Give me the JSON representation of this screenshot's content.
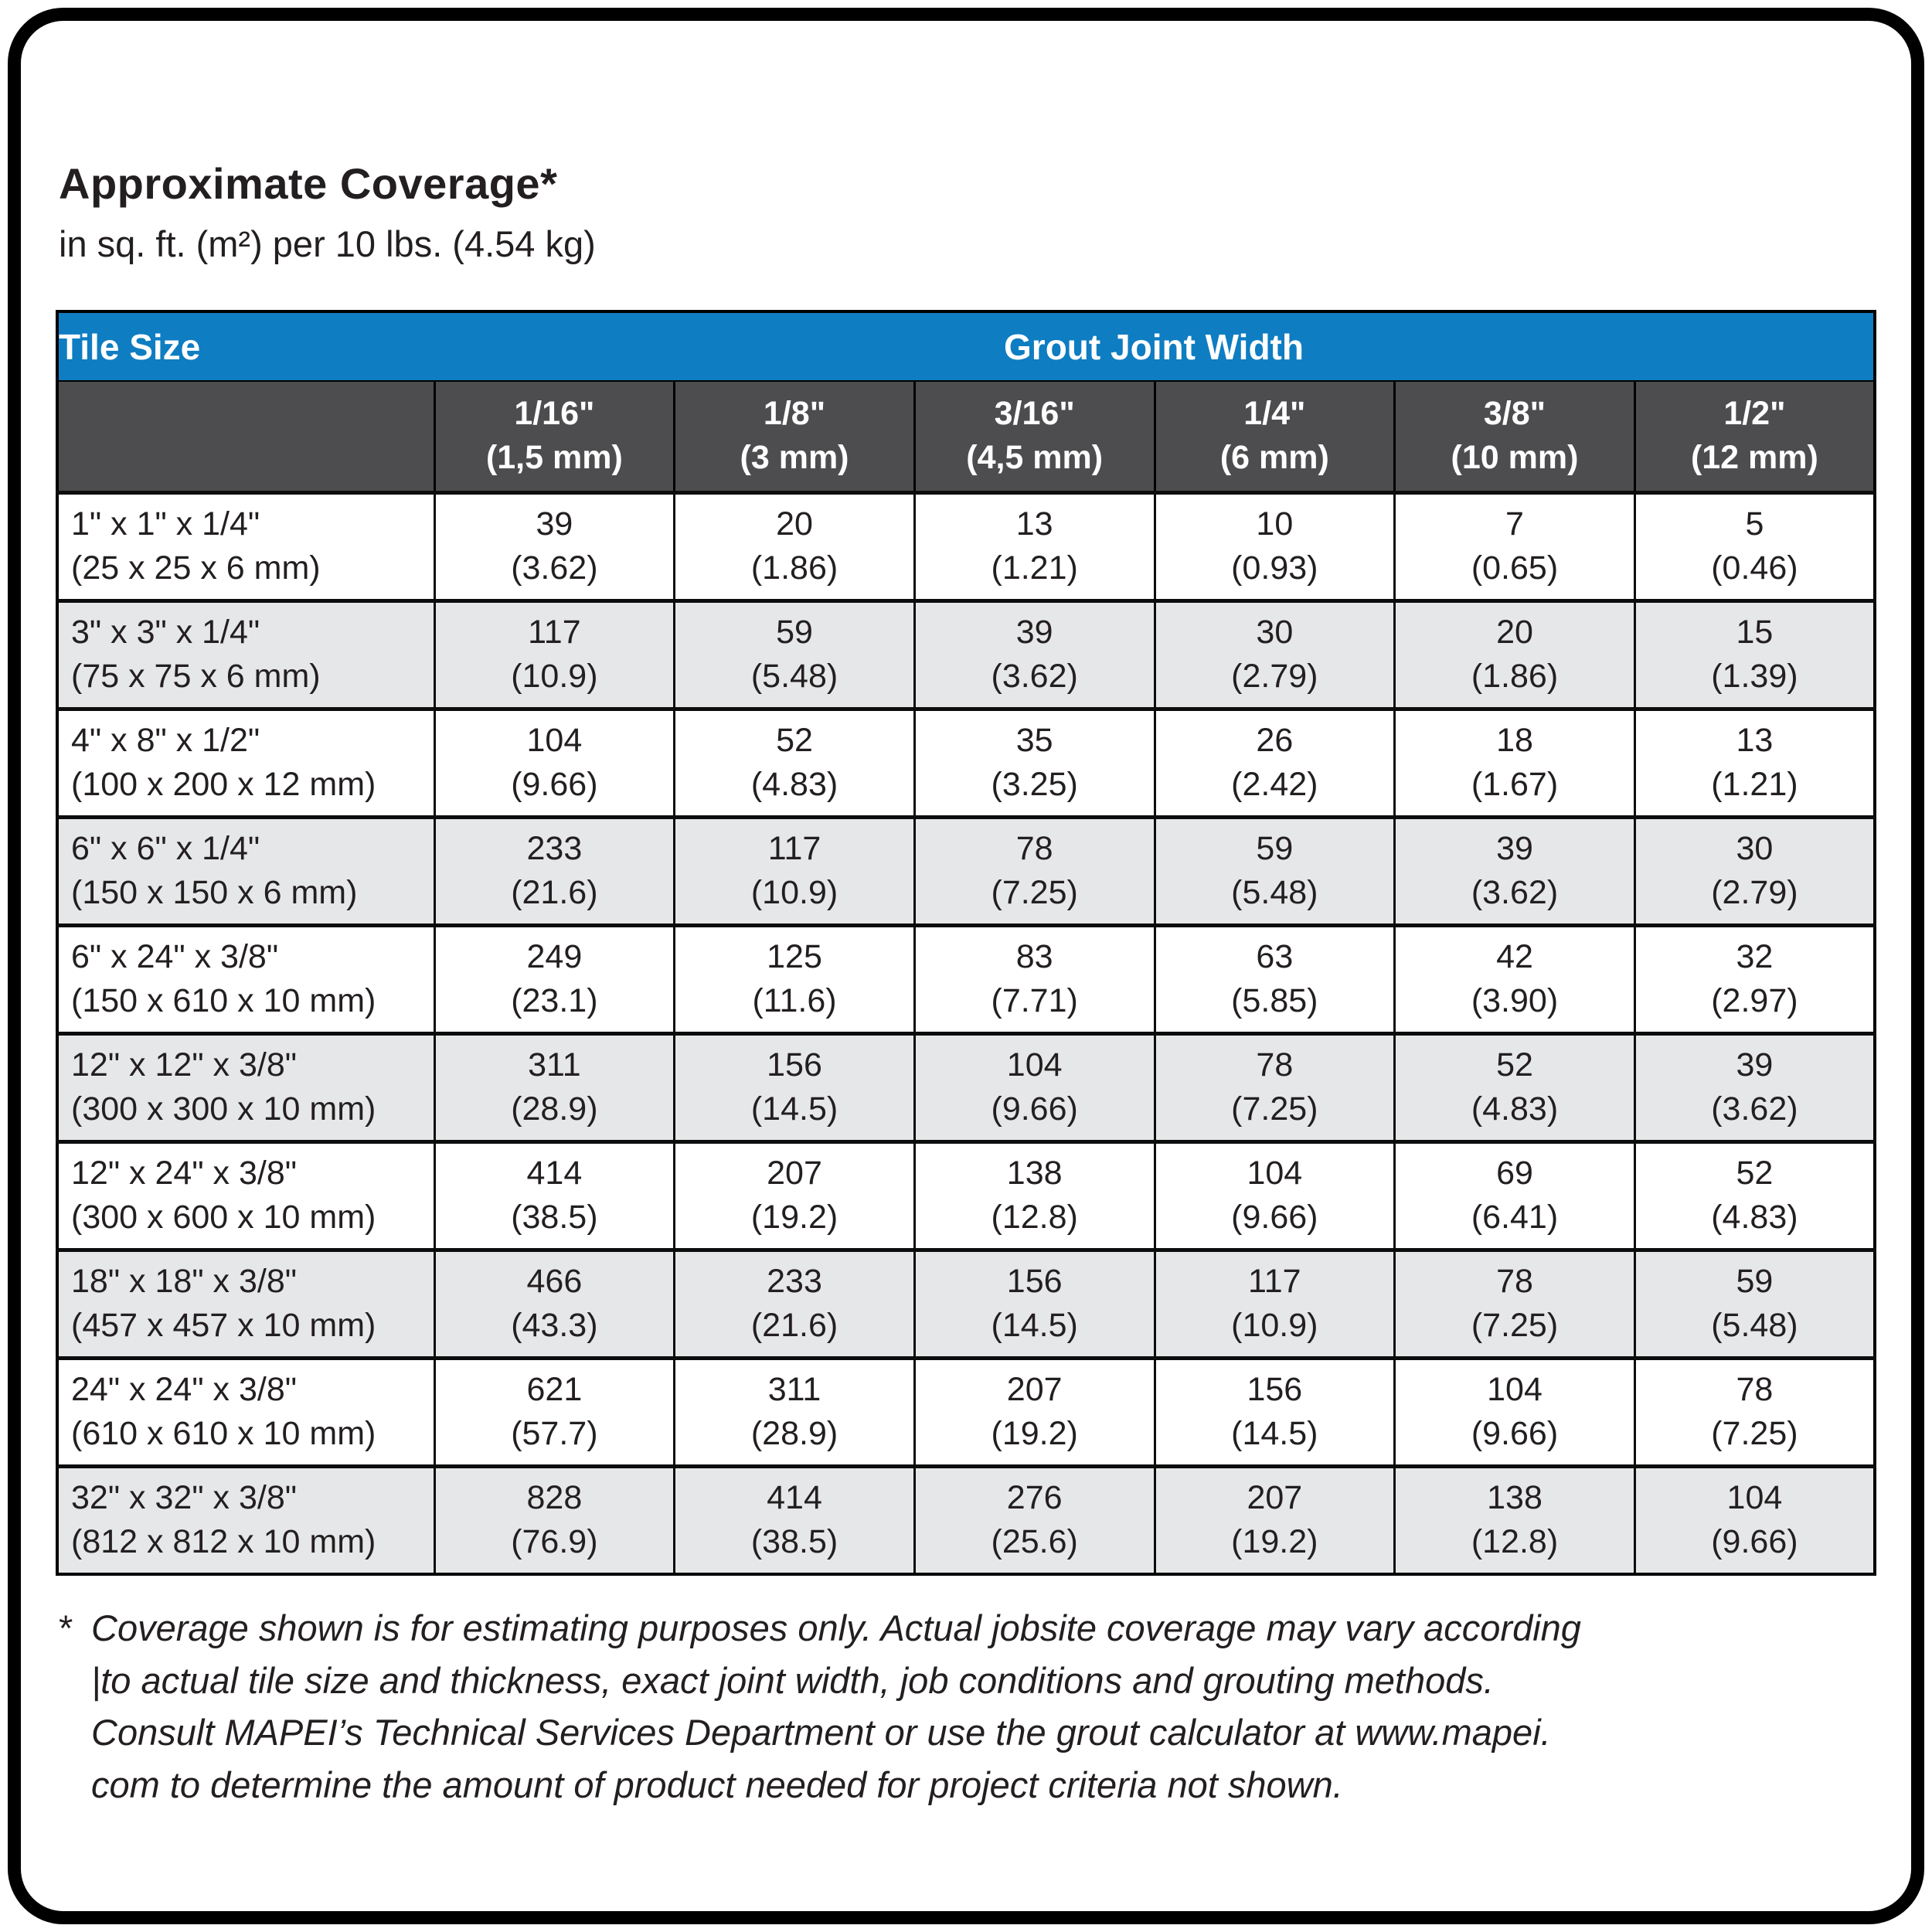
{
  "page": {
    "title": "Approximate Coverage*",
    "subtitle": "in sq. ft. (m²) per 10 lbs. (4.54 kg)"
  },
  "colors": {
    "header_blue": "#0e7dc2",
    "subheader_gray": "#4d4d4f",
    "row_alt_gray": "#e6e7e8",
    "text_black": "#231f20"
  },
  "table": {
    "tile_size_label": "Tile Size",
    "grout_joint_width_label": "Grout Joint Width",
    "columns": [
      {
        "inches": "1/16\"",
        "mm": "(1,5 mm)"
      },
      {
        "inches": "1/8\"",
        "mm": "(3 mm)"
      },
      {
        "inches": "3/16\"",
        "mm": "(4,5 mm)"
      },
      {
        "inches": "1/4\"",
        "mm": "(6 mm)"
      },
      {
        "inches": "3/8\"",
        "mm": "(10 mm)"
      },
      {
        "inches": "1/2\"",
        "mm": "(12 mm)"
      }
    ],
    "rows": [
      {
        "size_inches": "1\" x 1\" x 1/4\"",
        "size_mm": "(25 x 25 x 6 mm)",
        "values": [
          {
            "sqft": "39",
            "m2": "(3.62)"
          },
          {
            "sqft": "20",
            "m2": "(1.86)"
          },
          {
            "sqft": "13",
            "m2": "(1.21)"
          },
          {
            "sqft": "10",
            "m2": "(0.93)"
          },
          {
            "sqft": "7",
            "m2": "(0.65)"
          },
          {
            "sqft": "5",
            "m2": "(0.46)"
          }
        ]
      },
      {
        "size_inches": "3\" x 3\" x 1/4\"",
        "size_mm": "(75 x 75 x 6 mm)",
        "values": [
          {
            "sqft": "117",
            "m2": "(10.9)"
          },
          {
            "sqft": "59",
            "m2": "(5.48)"
          },
          {
            "sqft": "39",
            "m2": "(3.62)"
          },
          {
            "sqft": "30",
            "m2": "(2.79)"
          },
          {
            "sqft": "20",
            "m2": "(1.86)"
          },
          {
            "sqft": "15",
            "m2": "(1.39)"
          }
        ]
      },
      {
        "size_inches": "4\" x 8\" x 1/2\"",
        "size_mm": "(100 x 200 x 12 mm)",
        "values": [
          {
            "sqft": "104",
            "m2": "(9.66)"
          },
          {
            "sqft": "52",
            "m2": "(4.83)"
          },
          {
            "sqft": "35",
            "m2": "(3.25)"
          },
          {
            "sqft": "26",
            "m2": "(2.42)"
          },
          {
            "sqft": "18",
            "m2": "(1.67)"
          },
          {
            "sqft": "13",
            "m2": "(1.21)"
          }
        ]
      },
      {
        "size_inches": "6\" x 6\" x 1/4\"",
        "size_mm": "(150 x 150 x 6 mm)",
        "values": [
          {
            "sqft": "233",
            "m2": "(21.6)"
          },
          {
            "sqft": "117",
            "m2": "(10.9)"
          },
          {
            "sqft": "78",
            "m2": "(7.25)"
          },
          {
            "sqft": "59",
            "m2": "(5.48)"
          },
          {
            "sqft": "39",
            "m2": "(3.62)"
          },
          {
            "sqft": "30",
            "m2": "(2.79)"
          }
        ]
      },
      {
        "size_inches": "6\" x 24\" x 3/8\"",
        "size_mm": "(150 x 610 x 10 mm)",
        "values": [
          {
            "sqft": "249",
            "m2": "(23.1)"
          },
          {
            "sqft": "125",
            "m2": "(11.6)"
          },
          {
            "sqft": "83",
            "m2": "(7.71)"
          },
          {
            "sqft": "63",
            "m2": "(5.85)"
          },
          {
            "sqft": "42",
            "m2": "(3.90)"
          },
          {
            "sqft": "32",
            "m2": "(2.97)"
          }
        ]
      },
      {
        "size_inches": "12\" x 12\" x 3/8\"",
        "size_mm": "(300 x 300 x 10 mm)",
        "values": [
          {
            "sqft": "311",
            "m2": "(28.9)"
          },
          {
            "sqft": "156",
            "m2": "(14.5)"
          },
          {
            "sqft": "104",
            "m2": "(9.66)"
          },
          {
            "sqft": "78",
            "m2": "(7.25)"
          },
          {
            "sqft": "52",
            "m2": "(4.83)"
          },
          {
            "sqft": "39",
            "m2": "(3.62)"
          }
        ]
      },
      {
        "size_inches": "12\" x 24\" x 3/8\"",
        "size_mm": "(300 x 600 x 10 mm)",
        "values": [
          {
            "sqft": "414",
            "m2": "(38.5)"
          },
          {
            "sqft": "207",
            "m2": "(19.2)"
          },
          {
            "sqft": "138",
            "m2": "(12.8)"
          },
          {
            "sqft": "104",
            "m2": "(9.66)"
          },
          {
            "sqft": "69",
            "m2": "(6.41)"
          },
          {
            "sqft": "52",
            "m2": "(4.83)"
          }
        ]
      },
      {
        "size_inches": "18\" x 18\" x 3/8\"",
        "size_mm": "(457 x 457 x 10 mm)",
        "values": [
          {
            "sqft": "466",
            "m2": "(43.3)"
          },
          {
            "sqft": "233",
            "m2": "(21.6)"
          },
          {
            "sqft": "156",
            "m2": "(14.5)"
          },
          {
            "sqft": "117",
            "m2": "(10.9)"
          },
          {
            "sqft": "78",
            "m2": "(7.25)"
          },
          {
            "sqft": "59",
            "m2": "(5.48)"
          }
        ]
      },
      {
        "size_inches": "24\" x 24\" x 3/8\"",
        "size_mm": "(610 x 610 x 10 mm)",
        "values": [
          {
            "sqft": "621",
            "m2": "(57.7)"
          },
          {
            "sqft": "311",
            "m2": "(28.9)"
          },
          {
            "sqft": "207",
            "m2": "(19.2)"
          },
          {
            "sqft": "156",
            "m2": "(14.5)"
          },
          {
            "sqft": "104",
            "m2": "(9.66)"
          },
          {
            "sqft": "78",
            "m2": "(7.25)"
          }
        ]
      },
      {
        "size_inches": "32\" x 32\" x 3/8\"",
        "size_mm": "(812 x 812 x 10 mm)",
        "values": [
          {
            "sqft": "828",
            "m2": "(76.9)"
          },
          {
            "sqft": "414",
            "m2": "(38.5)"
          },
          {
            "sqft": "276",
            "m2": "(25.6)"
          },
          {
            "sqft": "207",
            "m2": "(19.2)"
          },
          {
            "sqft": "138",
            "m2": "(12.8)"
          },
          {
            "sqft": "104",
            "m2": "(9.66)"
          }
        ]
      }
    ]
  },
  "footnote": {
    "marker": "*",
    "lines": [
      "Coverage shown is for estimating purposes only. Actual jobsite coverage may vary according",
      "|to actual tile size and thickness, exact joint width, job conditions and grouting methods.",
      "Consult MAPEI’s Technical Services Department or use the grout calculator at www.mapei.",
      "com to determine the amount of product needed for project criteria not shown."
    ]
  }
}
